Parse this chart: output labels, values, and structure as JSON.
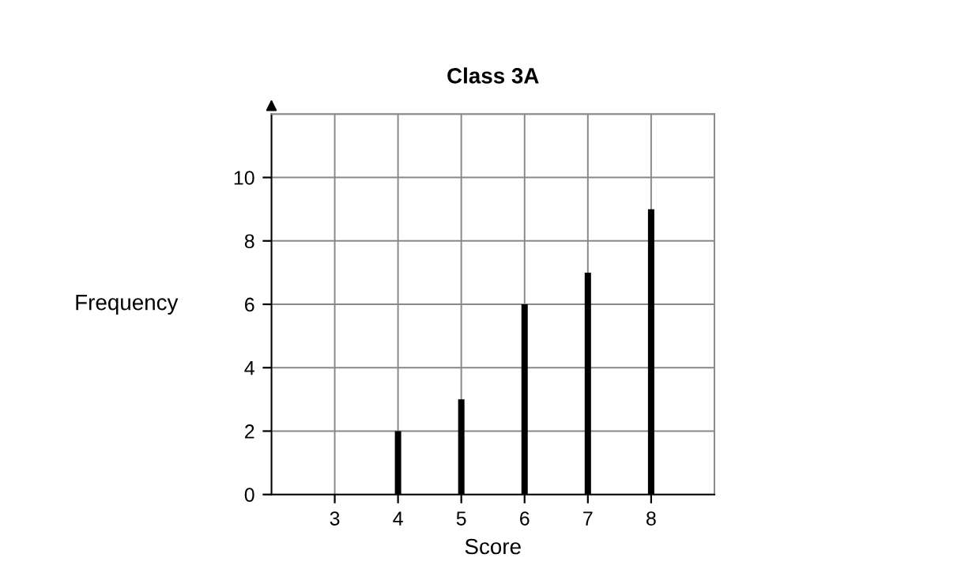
{
  "chart_data": {
    "type": "bar",
    "title": "Class 3A",
    "xlabel": "Score",
    "ylabel": "Frequency",
    "x": [
      4,
      5,
      6,
      7,
      8
    ],
    "values": [
      2,
      3,
      6,
      7,
      9
    ],
    "color": "#000000",
    "xlim": [
      2,
      9
    ],
    "xticks": [
      3,
      4,
      5,
      6,
      7,
      8
    ],
    "ylim": [
      0,
      12
    ],
    "yticks": [
      0,
      2,
      4,
      6,
      8,
      10
    ],
    "grid": true
  }
}
